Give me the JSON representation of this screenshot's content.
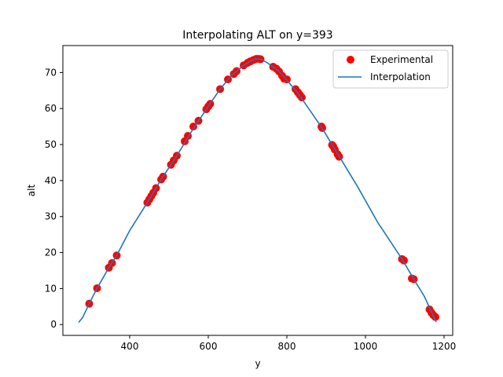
{
  "chart_data": {
    "type": "scatter",
    "title": "Interpolating ALT on y=393",
    "xlabel": "y",
    "ylabel": "alt",
    "xlim": [
      230,
      1222
    ],
    "ylim": [
      -3.0,
      77.5
    ],
    "xticks": [
      400,
      600,
      800,
      1000,
      1200
    ],
    "yticks": [
      0,
      10,
      20,
      30,
      40,
      50,
      60,
      70
    ],
    "grid": false,
    "legend_position": "top-right",
    "colors": {
      "experimental": "#ff0000",
      "interpolation": "#1f77b4"
    },
    "series": [
      {
        "name": "Experimental",
        "kind": "points",
        "x": [
          297,
          317,
          347,
          355,
          367,
          445,
          450,
          455,
          460,
          467,
          480,
          485,
          505,
          512,
          520,
          540,
          548,
          562,
          575,
          595,
          600,
          605,
          630,
          650,
          665,
          672,
          690,
          700,
          707,
          715,
          722,
          728,
          733,
          765,
          773,
          780,
          788,
          793,
          800,
          822,
          828,
          833,
          838,
          888,
          890,
          915,
          918,
          922,
          929,
          933,
          1093,
          1098,
          1118,
          1123,
          1163,
          1168,
          1173,
          1178
        ],
        "y": [
          5.8,
          10.1,
          15.8,
          17.1,
          19.2,
          33.9,
          34.8,
          35.7,
          36.6,
          37.9,
          40.3,
          41.1,
          44.4,
          45.6,
          46.9,
          50.9,
          52.4,
          55.0,
          56.6,
          59.8,
          60.6,
          61.3,
          65.4,
          68.1,
          69.6,
          70.4,
          72.0,
          72.7,
          73.1,
          73.5,
          73.8,
          73.8,
          73.7,
          71.6,
          71.1,
          70.3,
          69.1,
          68.3,
          68.1,
          65.4,
          64.5,
          63.8,
          63.1,
          55.0,
          54.6,
          49.9,
          49.5,
          48.6,
          47.3,
          46.6,
          18.2,
          17.8,
          12.8,
          12.6,
          4.2,
          3.3,
          2.6,
          2.1
        ]
      },
      {
        "name": "Interpolation",
        "kind": "line",
        "x": [
          270,
          280,
          297,
          317,
          347,
          367,
          400,
          445,
          480,
          520,
          560,
          600,
          630,
          660,
          690,
          705,
          720,
          735,
          750,
          765,
          780,
          800,
          830,
          860,
          890,
          930,
          980,
          1030,
          1093,
          1123,
          1150,
          1165,
          1180
        ],
        "y": [
          0.6,
          1.9,
          5.8,
          10.1,
          15.8,
          19.2,
          26.1,
          33.9,
          40.3,
          46.9,
          54.1,
          60.6,
          65.4,
          69.3,
          72.0,
          73.0,
          73.8,
          73.7,
          72.7,
          71.6,
          70.3,
          67.9,
          64.0,
          59.3,
          54.5,
          47.3,
          38.3,
          28.6,
          18.2,
          12.6,
          7.8,
          4.2,
          0.7
        ]
      }
    ]
  }
}
